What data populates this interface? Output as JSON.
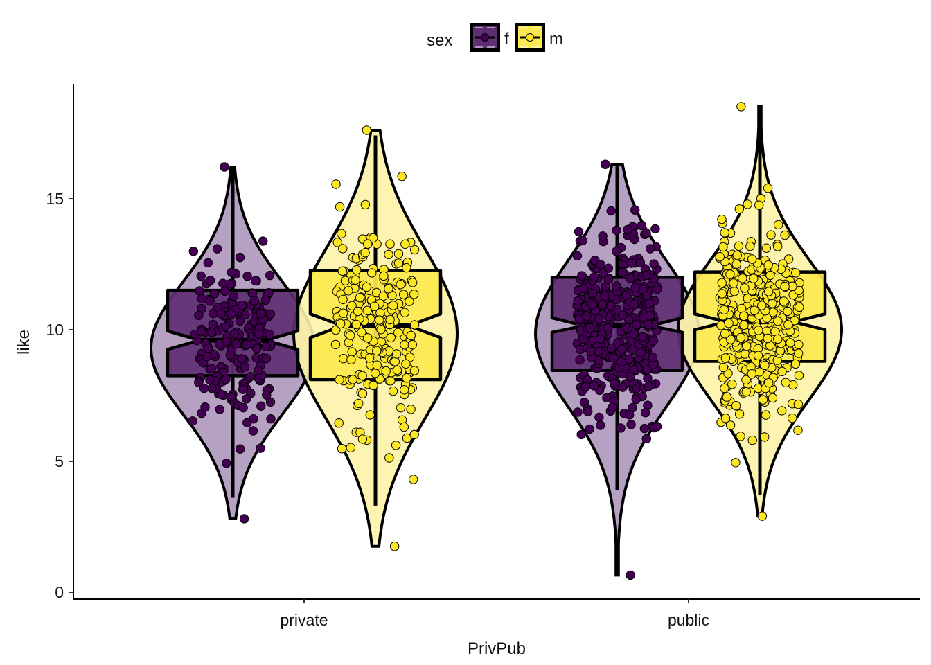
{
  "chart_data": {
    "type": "violin+boxplot+jitter",
    "title": "",
    "xlabel": "PrivPub",
    "ylabel": "like",
    "ylim": [
      0,
      19
    ],
    "yticks": [
      0,
      5,
      10,
      15
    ],
    "categories": [
      "private",
      "public"
    ],
    "grid": false,
    "legend": {
      "title": "sex",
      "position": "top",
      "entries": [
        "f",
        "m"
      ]
    },
    "series": [
      {
        "name": "f",
        "color": "#440154",
        "box_fill": "#5f2e73",
        "violin_fill": "#ae97bb",
        "groups": [
          {
            "category": "private",
            "min": 2.8,
            "q1": 8.25,
            "median": 9.6,
            "q3": 11.5,
            "max": 16.2,
            "notch_low": 9.25,
            "notch_high": 9.95,
            "whisker_low": 3.6,
            "whisker_high": 16.2,
            "n_points": 200
          },
          {
            "category": "public",
            "min": 0.65,
            "q1": 8.45,
            "median": 10.15,
            "q3": 12.0,
            "max": 16.3,
            "notch_low": 9.9,
            "notch_high": 10.45,
            "whisker_low": 3.9,
            "whisker_high": 16.3,
            "n_points": 420
          }
        ]
      },
      {
        "name": "m",
        "color": "#fde725",
        "box_fill": "#fce94f",
        "violin_fill": "#fdf3a8",
        "groups": [
          {
            "category": "private",
            "min": 1.75,
            "q1": 8.1,
            "median": 10.15,
            "q3": 12.25,
            "max": 17.6,
            "notch_low": 9.7,
            "notch_high": 10.6,
            "whisker_low": 3.3,
            "whisker_high": 17.4,
            "n_points": 220
          },
          {
            "category": "public",
            "min": 2.9,
            "q1": 8.8,
            "median": 10.3,
            "q3": 12.2,
            "max": 18.5,
            "notch_low": 10.0,
            "notch_high": 10.6,
            "whisker_low": 3.7,
            "whisker_high": 18.2,
            "n_points": 380
          }
        ]
      }
    ]
  },
  "axes": {
    "x_title": "PrivPub",
    "y_title": "like",
    "x_ticks": [
      "private",
      "public"
    ],
    "y_ticks": [
      "0",
      "5",
      "10",
      "15"
    ]
  },
  "legend": {
    "title": "sex",
    "labels": [
      "f",
      "m"
    ]
  }
}
